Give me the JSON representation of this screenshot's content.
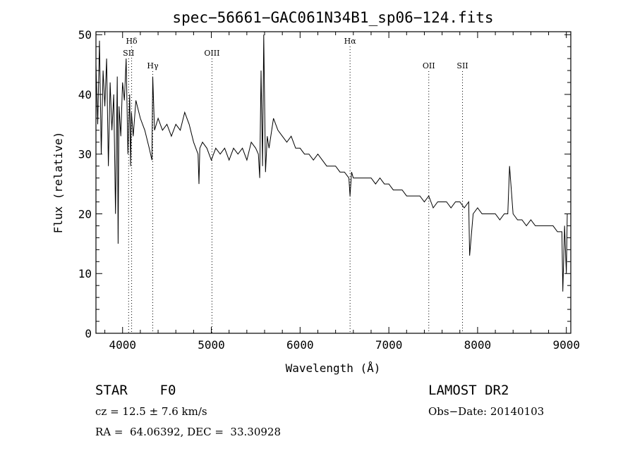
{
  "chart_data": {
    "type": "line",
    "title": "spec−56661−GAC061N34B1_sp06−124.fits",
    "xlabel": "Wavelength (Å)",
    "ylabel": "Flux (relative)",
    "xlim": [
      3700,
      9050
    ],
    "ylim": [
      0,
      50.5
    ],
    "xticks": [
      4000,
      5000,
      6000,
      7000,
      8000,
      9000
    ],
    "yticks": [
      0,
      10,
      20,
      30,
      40,
      50
    ],
    "grid": false,
    "series": [
      {
        "x": [
          3700,
          3720,
          3740,
          3760,
          3780,
          3800,
          3820,
          3840,
          3860,
          3880,
          3900,
          3920,
          3940,
          3950,
          3960,
          3980,
          4000,
          4020,
          4040,
          4060,
          4080,
          4090,
          4100,
          4120,
          4150,
          4200,
          4250,
          4300,
          4330,
          4340,
          4360,
          4400,
          4450,
          4500,
          4550,
          4600,
          4650,
          4700,
          4750,
          4800,
          4850,
          4861,
          4870,
          4900,
          4950,
          5000,
          5050,
          5100,
          5150,
          5200,
          5250,
          5300,
          5350,
          5400,
          5450,
          5500,
          5530,
          5545,
          5560,
          5577,
          5590,
          5610,
          5630,
          5650,
          5700,
          5750,
          5800,
          5850,
          5900,
          5950,
          6000,
          6050,
          6100,
          6150,
          6200,
          6250,
          6300,
          6350,
          6400,
          6450,
          6500,
          6550,
          6563,
          6580,
          6600,
          6650,
          6700,
          6750,
          6800,
          6850,
          6900,
          6950,
          7000,
          7050,
          7100,
          7150,
          7200,
          7250,
          7300,
          7350,
          7400,
          7450,
          7500,
          7550,
          7600,
          7650,
          7700,
          7750,
          7800,
          7850,
          7900,
          7910,
          7950,
          8000,
          8050,
          8100,
          8150,
          8200,
          8250,
          8300,
          8340,
          8360,
          8400,
          8450,
          8500,
          8550,
          8600,
          8650,
          8700,
          8750,
          8800,
          8850,
          8900,
          8950,
          8960,
          8980,
          9000,
          9010
        ],
        "y": [
          45,
          35,
          49,
          30,
          44,
          38,
          46,
          28,
          42,
          34,
          40,
          20,
          43,
          15,
          38,
          33,
          42,
          39,
          46,
          30,
          40,
          28,
          37,
          33,
          39,
          36,
          34,
          31,
          29,
          43,
          34,
          36,
          34,
          35,
          33,
          35,
          34,
          37,
          35,
          32,
          30,
          25,
          31,
          32,
          31,
          29,
          31,
          30,
          31,
          29,
          31,
          30,
          31,
          29,
          32,
          31,
          30,
          26,
          44,
          28,
          50,
          27,
          33,
          31,
          36,
          34,
          33,
          32,
          33,
          31,
          31,
          30,
          30,
          29,
          30,
          29,
          28,
          28,
          28,
          27,
          27,
          26,
          23,
          27,
          26,
          26,
          26,
          26,
          26,
          25,
          26,
          25,
          25,
          24,
          24,
          24,
          23,
          23,
          23,
          23,
          22,
          23,
          21,
          22,
          22,
          22,
          21,
          22,
          22,
          21,
          22,
          13,
          20,
          21,
          20,
          20,
          20,
          20,
          19,
          20,
          20,
          28,
          20,
          19,
          19,
          18,
          19,
          18,
          18,
          18,
          18,
          18,
          17,
          17,
          7,
          18,
          10,
          20
        ]
      }
    ],
    "line_markers": [
      {
        "label": "Hδ",
        "x": 4102,
        "row": 0
      },
      {
        "label": "SII",
        "x": 4068,
        "row": 1
      },
      {
        "label": "Hγ",
        "x": 4340,
        "row": 2
      },
      {
        "label": "OIII",
        "x": 5007,
        "row": 1
      },
      {
        "label": "Hα",
        "x": 6563,
        "row": 0
      },
      {
        "label": "OII",
        "x": 7450,
        "row": 2
      },
      {
        "label": "SII",
        "x": 7830,
        "row": 2
      }
    ]
  },
  "info": {
    "classification": "STAR    F0",
    "survey": "LAMOST DR2",
    "cz": "cz = 12.5 ± 7.6 km/s",
    "obs_date": "Obs−Date: 20140103",
    "coords": "RA =  64.06392, DEC =  33.30928"
  }
}
